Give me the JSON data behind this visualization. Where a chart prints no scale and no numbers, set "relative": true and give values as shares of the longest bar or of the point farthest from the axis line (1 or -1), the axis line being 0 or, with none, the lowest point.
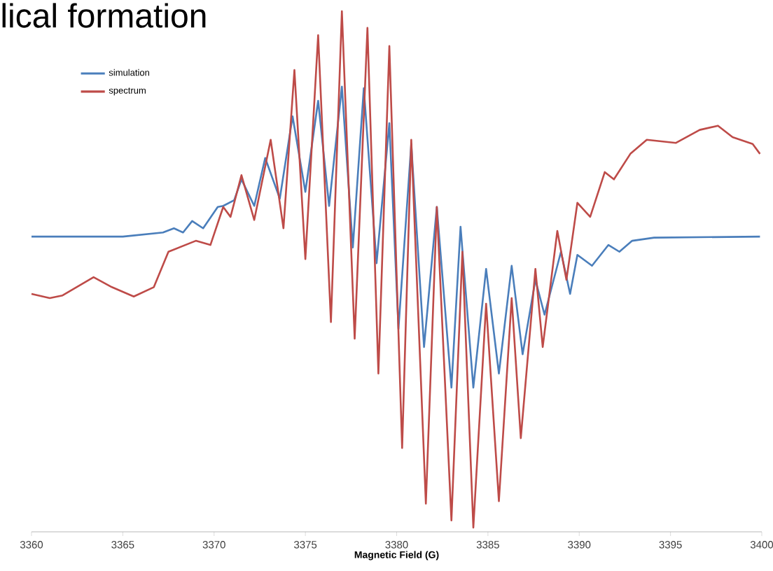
{
  "chart_data": {
    "type": "line",
    "title": "lical formation",
    "xlabel": "Magnetic Field (G)",
    "relative": true,
    "legend": "top left",
    "marker": "none",
    "grid": false,
    "xlim": [
      3360,
      3400
    ],
    "xticks": [
      3360,
      3365,
      3370,
      3375,
      3380,
      3385,
      3390,
      3395,
      3400
    ],
    "series": [
      {
        "name": "simulation",
        "color": "#4a7ebb",
        "x": [
          3360.0,
          3365.0,
          3367.2,
          3367.8,
          3368.3,
          3368.8,
          3369.4,
          3370.2,
          3370.5,
          3371.1,
          3371.5,
          3372.2,
          3372.8,
          3373.6,
          3374.3,
          3375.0,
          3375.7,
          3376.3,
          3377.0,
          3377.6,
          3378.2,
          3378.9,
          3379.6,
          3380.1,
          3380.8,
          3381.5,
          3382.2,
          3383.0,
          3383.5,
          3384.2,
          3384.9,
          3385.6,
          3386.3,
          3386.9,
          3387.6,
          3388.1,
          3389.0,
          3389.5,
          3389.9,
          3390.7,
          3391.6,
          3392.2,
          3392.9,
          3394.1,
          3399.9
        ],
        "values": [
          0.567,
          0.567,
          0.575,
          0.583,
          0.575,
          0.597,
          0.583,
          0.624,
          0.626,
          0.637,
          0.677,
          0.626,
          0.718,
          0.64,
          0.798,
          0.653,
          0.828,
          0.626,
          0.855,
          0.546,
          0.852,
          0.516,
          0.785,
          0.39,
          0.745,
          0.355,
          0.624,
          0.277,
          0.586,
          0.277,
          0.505,
          0.304,
          0.511,
          0.341,
          0.484,
          0.417,
          0.538,
          0.457,
          0.532,
          0.511,
          0.551,
          0.538,
          0.559,
          0.565,
          0.567
        ]
      },
      {
        "name": "spectrum",
        "color": "#be4b48",
        "x": [
          3360.0,
          3361.0,
          3361.7,
          3363.4,
          3364.4,
          3365.6,
          3366.7,
          3367.5,
          3369.0,
          3369.8,
          3370.5,
          3370.9,
          3371.5,
          3372.2,
          3373.1,
          3373.8,
          3374.4,
          3375.0,
          3375.7,
          3376.4,
          3377.0,
          3377.7,
          3378.4,
          3379.0,
          3379.6,
          3380.3,
          3380.8,
          3381.6,
          3382.2,
          3383.0,
          3383.6,
          3384.2,
          3384.9,
          3385.6,
          3386.3,
          3386.8,
          3387.6,
          3388.0,
          3388.8,
          3389.3,
          3389.9,
          3390.6,
          3391.4,
          3391.9,
          3392.8,
          3393.7,
          3395.3,
          3396.6,
          3397.6,
          3398.4,
          3399.5,
          3399.9
        ],
        "values": [
          0.457,
          0.449,
          0.454,
          0.489,
          0.47,
          0.452,
          0.47,
          0.538,
          0.559,
          0.551,
          0.624,
          0.605,
          0.685,
          0.599,
          0.753,
          0.583,
          0.887,
          0.524,
          0.954,
          0.403,
          1.0,
          0.371,
          0.968,
          0.304,
          0.933,
          0.161,
          0.753,
          0.054,
          0.624,
          0.022,
          0.538,
          0.008,
          0.438,
          0.059,
          0.449,
          0.18,
          0.505,
          0.355,
          0.578,
          0.484,
          0.632,
          0.605,
          0.691,
          0.677,
          0.726,
          0.753,
          0.747,
          0.772,
          0.78,
          0.758,
          0.745,
          0.726
        ]
      }
    ]
  }
}
